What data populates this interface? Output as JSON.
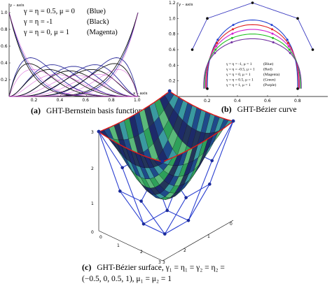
{
  "panel_a": {
    "caption_letter": "(a)",
    "caption_text": "GHT-Bernstein basis function",
    "y_axis_label": "y – axis",
    "x_axis_label": "x – axis",
    "legend": [
      {
        "text": "γ = η = 0.5, μ = 0",
        "color_name": "(Blue)",
        "color": "#2a2a9a"
      },
      {
        "text": "γ = η = -1",
        "color_name": "(Black)",
        "color": "#111111"
      },
      {
        "text": "γ = η = 0, μ = 1",
        "color_name": "(Magenta)",
        "color": "#d040d0"
      }
    ]
  },
  "panel_b": {
    "caption_letter": "(b)",
    "caption_text": "GHT-Bézier curve",
    "y_axis_label": "y – axis",
    "legend": [
      {
        "text": "γ = η = -1, μ = 1",
        "color_name": "(Blue)",
        "color": "#2040d0"
      },
      {
        "text": "γ = η = -0.5, μ = 1",
        "color_name": "(Red)",
        "color": "#e02020"
      },
      {
        "text": "γ = η = 0, μ = 1",
        "color_name": "(Magenta)",
        "color": "#d020d0"
      },
      {
        "text": "γ = η = 0.5, μ = 1",
        "color_name": "(Green)",
        "color": "#20c020"
      },
      {
        "text": "γ = η = 1, μ = 1",
        "color_name": "(Purple)",
        "color": "#7030a0"
      }
    ]
  },
  "panel_c": {
    "caption_letter": "(c)",
    "caption_line1": "GHT-Bézier surface, γ₁ = η₁ = γ₂ = η₂ =",
    "caption_line2": "(−0.5, 0, 0.5, 1), μ₁ = μ₂ = 1"
  },
  "chart_data": [
    {
      "type": "line",
      "title": "",
      "xlabel": "x – axis",
      "ylabel": "y – axis",
      "xlim": [
        0,
        1
      ],
      "ylim": [
        0,
        1
      ],
      "xticks": [
        "0.2",
        "0.4",
        "0.6",
        "0.8",
        "1.0"
      ],
      "yticks": [
        "0.2",
        "0.4",
        "0.6",
        "0.8",
        "1.0"
      ],
      "series": [
        {
          "name": "γ = η = 0.5, μ = 0 (Blue)",
          "color": "#2a2a9a"
        },
        {
          "name": "γ = η = -1 (Black)",
          "color": "#111111"
        },
        {
          "name": "γ = η = 0, μ = 1 (Magenta)",
          "color": "#d040d0"
        }
      ]
    },
    {
      "type": "line",
      "title": "",
      "ylabel": "y – axis",
      "xlim": [
        0,
        1
      ],
      "ylim": [
        0,
        1.2
      ],
      "xticks": [
        "0.2",
        "0.4",
        "0.6",
        "0.8"
      ],
      "yticks": [
        "0.2",
        "0.4",
        "0.6",
        "0.8",
        "1.0",
        "1.2"
      ],
      "control_polygon": {
        "x": [
          0.1,
          0.2,
          0.5,
          0.8,
          0.9
        ],
        "y": [
          0.6,
          1.0,
          1.2,
          1.0,
          0.6
        ]
      }
    }
  ]
}
